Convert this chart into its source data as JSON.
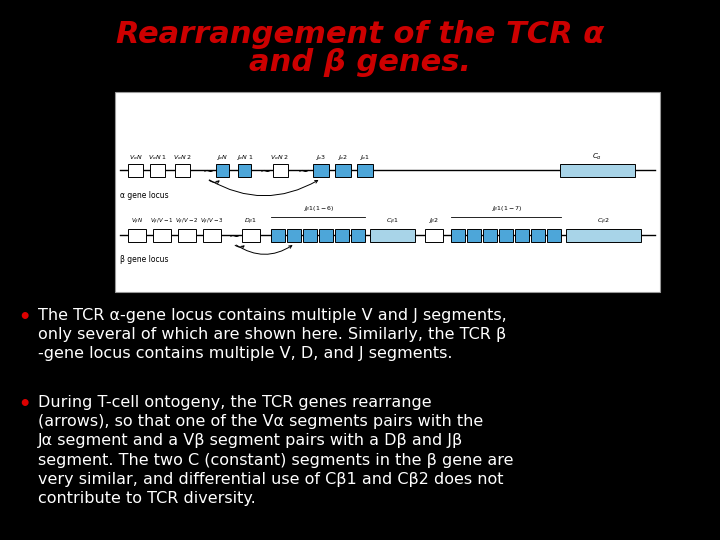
{
  "background_color": "#000000",
  "title_line1": "Rearrangement of the TCR α",
  "title_line2": "and β genes.",
  "title_color": "#cc0000",
  "title_fontsize": 22,
  "bullet_color": "#ffffff",
  "bullet_red": "#dd0000",
  "bullet_fontsize": 11.5,
  "bullet1_lines": [
    "The TCR α-gene locus contains multiple V and J segments,",
    "only several of which are shown here. Similarly, the TCR β",
    "-gene locus contains multiple V, D, and J segments."
  ],
  "bullet2_lines": [
    "During T-cell ontogeny, the TCR genes rearrange",
    "(arrows), so that one of the Vα segments pairs with the",
    "Jα segment and a Vβ segment pairs with a Dβ and Jβ",
    "segment. The two C (constant) segments in the β gene are",
    "very similar, and differential use of Cβ1 and Cβ2 does not",
    "contribute to TCR diversity."
  ],
  "diagram_bg": "#ffffff",
  "diagram_box_color_dark": "#4da6d9",
  "diagram_box_color_light": "#a8d4e8",
  "diagram_box_outline": "#000000"
}
